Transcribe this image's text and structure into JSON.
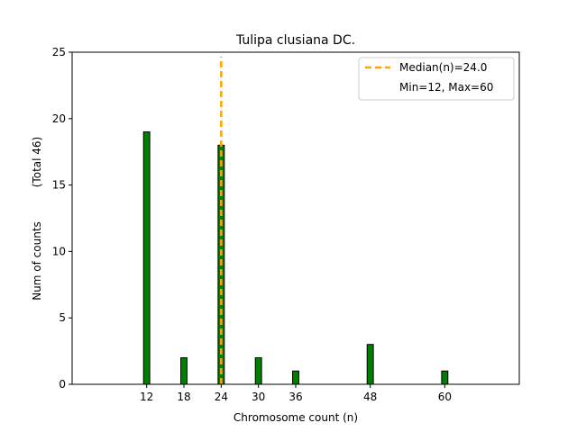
{
  "chart_data": {
    "type": "bar",
    "title": "Tulipa clusiana DC.",
    "xlabel": "Chromosome count (n)",
    "ylabel": "Num of counts",
    "ylabel_secondary": "(Total 46)",
    "x": [
      12,
      18,
      24,
      30,
      36,
      48,
      60
    ],
    "values": [
      19,
      2,
      18,
      2,
      1,
      3,
      1
    ],
    "xticks": [
      12,
      18,
      24,
      30,
      36,
      48,
      60
    ],
    "yticks": [
      0,
      5,
      10,
      15,
      20,
      25
    ],
    "xlim": [
      0,
      72
    ],
    "ylim": [
      0,
      25
    ],
    "bar_width": 1,
    "bar_color": "#008000",
    "bar_edge_color": "#000000",
    "median": 24.0,
    "median_color": "#FFA500",
    "legend": {
      "position": "top-right",
      "entries": [
        "Median(n)=24.0",
        "Min=12, Max=60"
      ]
    }
  }
}
